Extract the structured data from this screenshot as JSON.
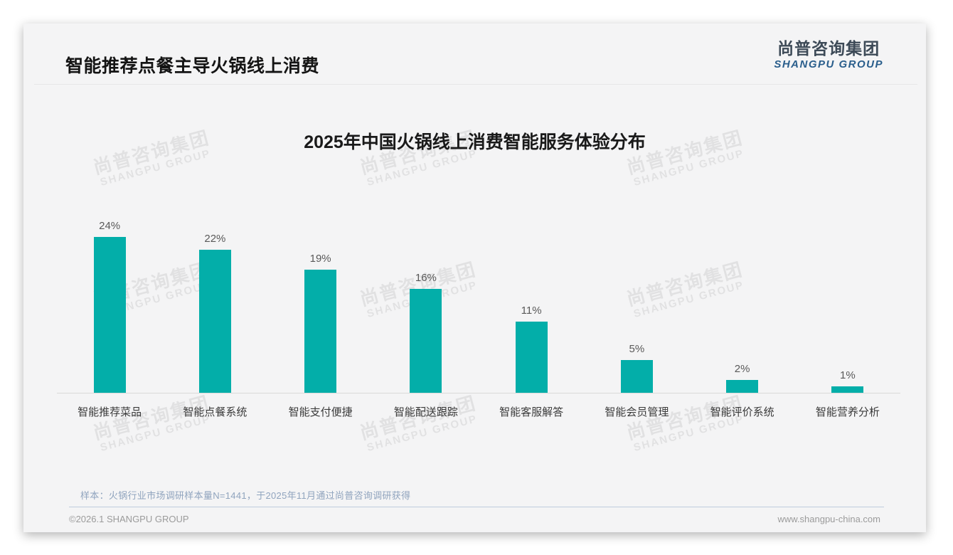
{
  "page": {
    "header": {
      "title": "智能推荐点餐主导火锅线上消费"
    },
    "logo": {
      "cn": "尚普咨询集团",
      "en": "SHANGPU GROUP"
    },
    "watermark": {
      "cn": "尚普咨询集团",
      "en": "SHANGPU GROUP"
    },
    "note": "样本：火锅行业市场调研样本量N=1441，于2025年11月通过尚普咨询调研获得",
    "footer": {
      "left": "©2026.1 SHANGPU GROUP",
      "right": "www.shangpu-china.com"
    }
  },
  "chart_data": {
    "type": "bar",
    "title": "2025年中国火锅线上消费智能服务体验分布",
    "categories": [
      "智能推荐菜品",
      "智能点餐系统",
      "智能支付便捷",
      "智能配送跟踪",
      "智能客服解答",
      "智能会员管理",
      "智能评价系统",
      "智能营养分析"
    ],
    "values": [
      24,
      22,
      19,
      16,
      11,
      5,
      2,
      1
    ],
    "value_labels": [
      "24%",
      "22%",
      "19%",
      "16%",
      "11%",
      "5%",
      "2%",
      "1%"
    ],
    "unit": "%",
    "xlabel": "",
    "ylabel": "",
    "ylim": [
      0,
      26
    ],
    "grid": false,
    "legend": null,
    "bar_color": "#03aea9",
    "value_label_color": "#595959",
    "category_label_color": "#3a3a3a"
  }
}
